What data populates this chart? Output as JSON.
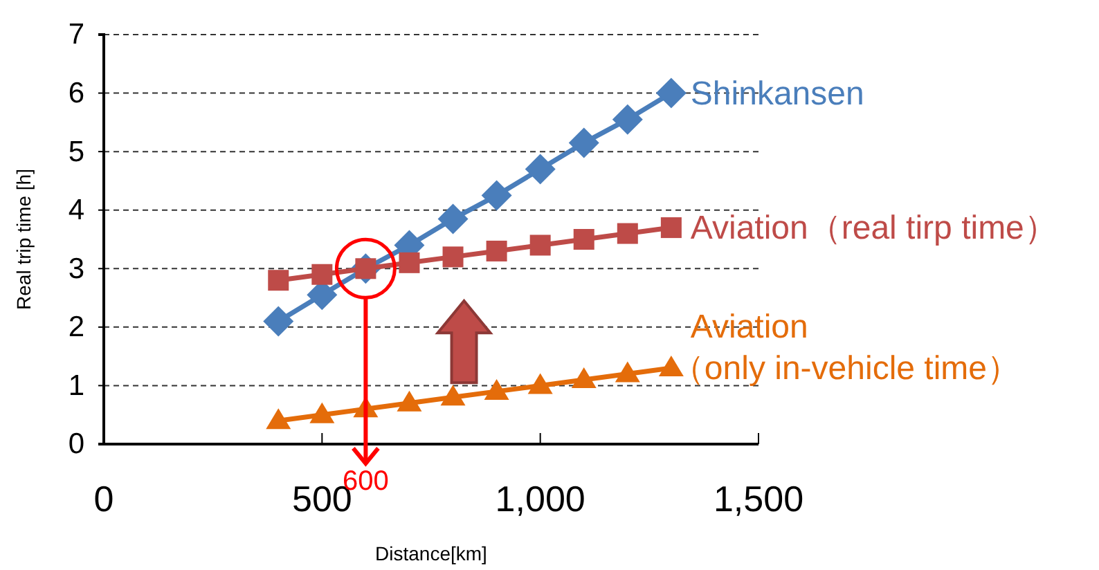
{
  "chart_data": {
    "type": "line",
    "xlabel": "Distance[km]",
    "ylabel": "Real trip time [h]",
    "x": [
      400,
      500,
      600,
      700,
      800,
      900,
      1000,
      1100,
      1200,
      1300
    ],
    "xlim": [
      0,
      1500
    ],
    "xticks": [
      0,
      {
        "value": 500,
        "label": "500"
      },
      {
        "value": 1000,
        "label": "1,000"
      },
      {
        "value": 1500,
        "label": "1,500"
      }
    ],
    "ylim": [
      0,
      7
    ],
    "yticks": [
      0,
      1,
      2,
      3,
      4,
      5,
      6,
      7
    ],
    "grid": "y",
    "line_style": "solid",
    "series": [
      {
        "name": "Shinkansen",
        "color": "#4a7ebb",
        "marker": "diamond",
        "values": [
          2.1,
          2.55,
          3.0,
          3.4,
          3.85,
          4.25,
          4.7,
          5.15,
          5.55,
          6.0
        ]
      },
      {
        "name": "Aviation（real tirp time）",
        "color": "#be4b48",
        "marker": "square",
        "values": [
          2.8,
          2.9,
          3.0,
          3.1,
          3.2,
          3.3,
          3.4,
          3.5,
          3.6,
          3.7
        ]
      },
      {
        "name": "Aviation\n（only in-vehicle time）",
        "color": "#e46c0a",
        "marker": "triangle",
        "values": [
          0.4,
          0.5,
          0.6,
          0.7,
          0.8,
          0.9,
          1.0,
          1.1,
          1.2,
          1.3
        ]
      }
    ],
    "ref_lines": [
      {
        "axis": "x",
        "value": 600,
        "label": "600",
        "color": "#ff0000"
      }
    ]
  }
}
